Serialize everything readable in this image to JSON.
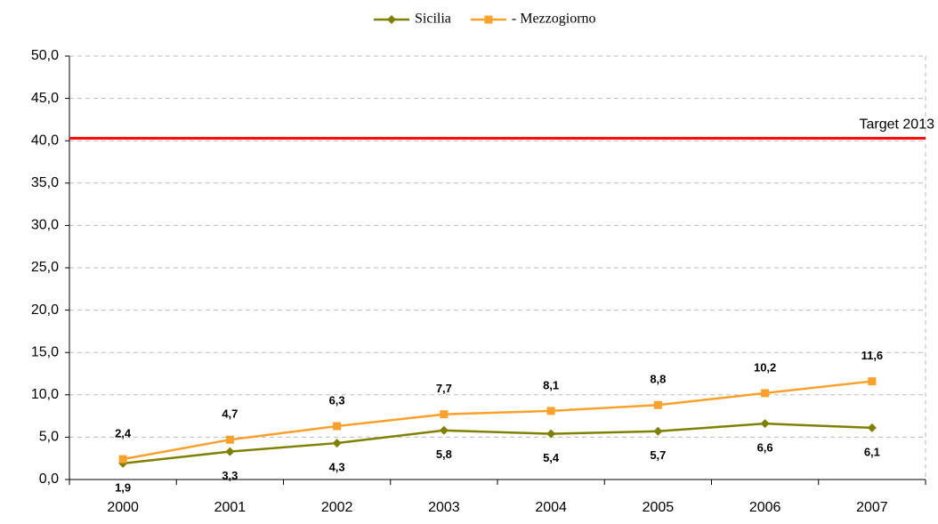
{
  "chart_data": {
    "type": "line",
    "categories": [
      "2000",
      "2001",
      "2002",
      "2003",
      "2004",
      "2005",
      "2006",
      "2007"
    ],
    "series": [
      {
        "name": "Sicilia",
        "color": "#808000",
        "marker": "diamond",
        "values": [
          1.9,
          3.3,
          4.3,
          5.8,
          5.4,
          5.7,
          6.6,
          6.1
        ],
        "value_labels": [
          "1,9",
          "3,3",
          "4,3",
          "5,8",
          "5,4",
          "5,7",
          "6,6",
          "6,1"
        ]
      },
      {
        "name": "- Mezzogiorno",
        "color": "#f9a12a",
        "marker": "square",
        "values": [
          2.4,
          4.7,
          6.3,
          7.7,
          8.1,
          8.8,
          10.2,
          11.6
        ],
        "value_labels": [
          "2,4",
          "4,7",
          "6,3",
          "7,7",
          "8,1",
          "8,8",
          "10,2",
          "11,6"
        ]
      }
    ],
    "target": {
      "label": "Target 2013",
      "value": 40.3,
      "color": "#ff0000"
    },
    "ylim": [
      0,
      50
    ],
    "yticks": [
      {
        "value": 0,
        "label": "0,0"
      },
      {
        "value": 5,
        "label": "5,0"
      },
      {
        "value": 10,
        "label": "10,0"
      },
      {
        "value": 15,
        "label": "15,0"
      },
      {
        "value": 20,
        "label": "20,0"
      },
      {
        "value": 25,
        "label": "25,0"
      },
      {
        "value": 30,
        "label": "30,0"
      },
      {
        "value": 35,
        "label": "35,0"
      },
      {
        "value": 40,
        "label": "40,0"
      },
      {
        "value": 45,
        "label": "45,0"
      },
      {
        "value": 50,
        "label": "50,0"
      }
    ],
    "grid": true
  }
}
